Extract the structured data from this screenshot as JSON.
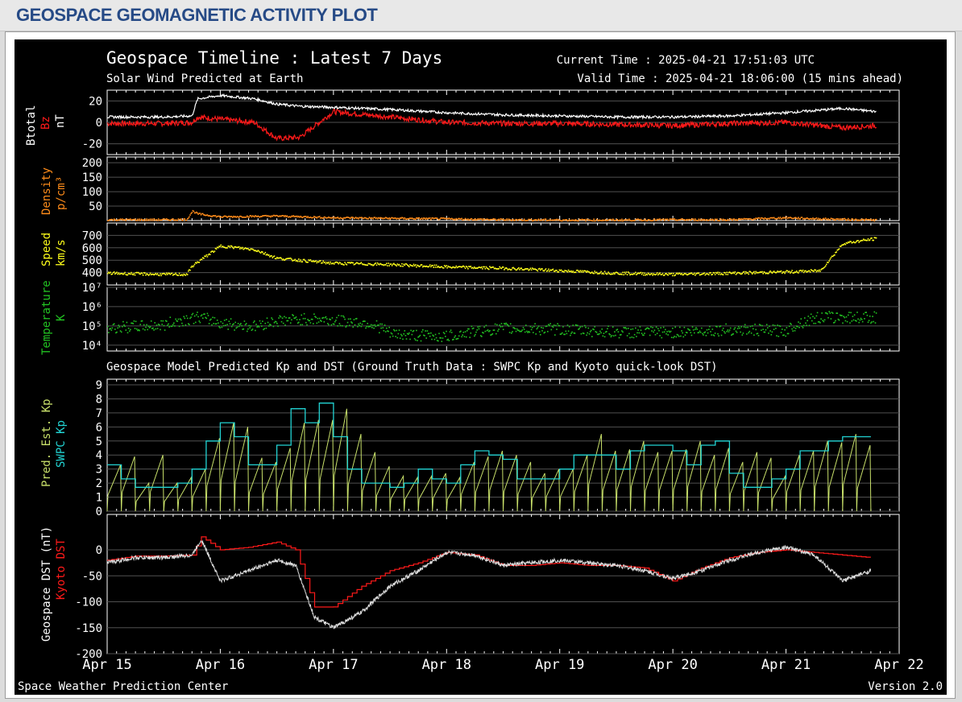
{
  "header": {
    "title": "GEOSPACE GEOMAGNETIC ACTIVITY PLOT"
  },
  "plot": {
    "title": "Geospace Timeline : Latest 7 Days",
    "subtitle": "Solar Wind Predicted at Earth",
    "current_time": "Current Time : 2025-04-21 17:51:03 UTC",
    "valid_time": "Valid Time : 2025-04-21 18:06:00 (15 mins ahead)",
    "model_title": "Geospace Model Predicted Kp and DST (Ground Truth Data : SWPC Kp and Kyoto quick-look DST)",
    "footer_left": "Space Weather Prediction Center",
    "footer_right": "Version 2.0",
    "x_ticks": [
      "Apr 15",
      "Apr 16",
      "Apr 17",
      "Apr 18",
      "Apr 19",
      "Apr 20",
      "Apr 21",
      "Apr 22"
    ]
  },
  "colors": {
    "background": "#000000",
    "grid": "#505050",
    "axis": "#ffffff",
    "btotal": "#ffffff",
    "bz": "#ff1a1a",
    "density": "#ff8c1a",
    "speed": "#ffff1a",
    "temperature": "#22c322",
    "pred_kp": "#c8e06a",
    "swpc_kp": "#22d3d3",
    "geospace_dst": "#dddddd",
    "kyoto_dst": "#ff1a1a"
  },
  "chart_data": [
    {
      "type": "line",
      "name": "magnetic-field",
      "ylabel_parts": [
        "Btotal",
        "Bz",
        "nT"
      ],
      "ylim": [
        -30,
        30
      ],
      "yticks": [
        20,
        0,
        -20
      ],
      "x": [
        "Apr 15",
        "Apr 15.5",
        "Apr 15.75",
        "Apr 15.8",
        "Apr 16",
        "Apr 16.3",
        "Apr 16.5",
        "Apr 16.7",
        "Apr 17",
        "Apr 17.5",
        "Apr 18",
        "Apr 18.5",
        "Apr 19",
        "Apr 19.5",
        "Apr 20",
        "Apr 20.5",
        "Apr 21",
        "Apr 21.5",
        "Apr 21.8"
      ],
      "series": [
        {
          "name": "Btotal",
          "values": [
            5,
            5,
            6,
            22,
            25,
            22,
            17,
            15,
            14,
            12,
            9,
            7,
            6,
            5,
            5,
            6,
            9,
            13,
            10
          ]
        },
        {
          "name": "Bz",
          "values": [
            -1,
            -1,
            0,
            5,
            3,
            0,
            -15,
            -14,
            10,
            5,
            0,
            -1,
            -1,
            -2,
            -3,
            -1,
            0,
            -5,
            -3
          ]
        }
      ]
    },
    {
      "type": "scatter",
      "name": "density",
      "ylabel_parts": [
        "Density",
        "p/cm³"
      ],
      "ylim": [
        0,
        220
      ],
      "yticks": [
        200,
        150,
        100,
        50
      ],
      "x": [
        "Apr 15",
        "Apr 15.5",
        "Apr 15.7",
        "Apr 15.75",
        "Apr 15.8",
        "Apr 16",
        "Apr 16.5",
        "Apr 17",
        "Apr 17.5",
        "Apr 18",
        "Apr 18.5",
        "Apr 19",
        "Apr 19.5",
        "Apr 20",
        "Apr 20.5",
        "Apr 21",
        "Apr 21.3",
        "Apr 21.8"
      ],
      "values": [
        5,
        5,
        6,
        35,
        25,
        15,
        18,
        12,
        10,
        8,
        5,
        4,
        4,
        5,
        5,
        12,
        8,
        4
      ]
    },
    {
      "type": "scatter",
      "name": "speed",
      "ylabel_parts": [
        "Speed",
        "km/s"
      ],
      "ylim": [
        300,
        800
      ],
      "yticks": [
        700,
        600,
        500,
        400
      ],
      "x": [
        "Apr 15",
        "Apr 15.5",
        "Apr 15.7",
        "Apr 15.75",
        "Apr 16",
        "Apr 16.3",
        "Apr 16.5",
        "Apr 17",
        "Apr 17.5",
        "Apr 18",
        "Apr 18.5",
        "Apr 19",
        "Apr 19.5",
        "Apr 20",
        "Apr 20.5",
        "Apr 21",
        "Apr 21.3",
        "Apr 21.5",
        "Apr 21.8"
      ],
      "values": [
        400,
        390,
        390,
        460,
        620,
        590,
        520,
        480,
        470,
        450,
        440,
        420,
        400,
        390,
        400,
        410,
        420,
        640,
        680
      ]
    },
    {
      "type": "scatter",
      "name": "temperature",
      "ylabel_parts": [
        "Temperature",
        "K"
      ],
      "yscale": "log",
      "ylim": [
        5000,
        10000000
      ],
      "yticks_labels": [
        "10⁷",
        "10⁶",
        "10⁵",
        "10⁴"
      ],
      "yticks": [
        10000000,
        1000000,
        100000,
        10000
      ],
      "x": [
        "Apr 15",
        "Apr 15.5",
        "Apr 15.8",
        "Apr 16",
        "Apr 16.3",
        "Apr 16.5",
        "Apr 16.8",
        "Apr 17",
        "Apr 17.3",
        "Apr 17.5",
        "Apr 18",
        "Apr 18.5",
        "Apr 19",
        "Apr 19.5",
        "Apr 20",
        "Apr 20.5",
        "Apr 21",
        "Apr 21.3",
        "Apr 21.8"
      ],
      "values": [
        80000,
        120000,
        300000,
        150000,
        100000,
        200000,
        250000,
        200000,
        150000,
        40000,
        30000,
        80000,
        70000,
        50000,
        50000,
        70000,
        60000,
        300000,
        300000
      ]
    },
    {
      "type": "line",
      "name": "kp",
      "ylabel_parts": [
        "Pred. Est. Kp",
        "SWPC Kp"
      ],
      "ylim": [
        0,
        9
      ],
      "yticks": [
        9,
        8,
        7,
        6,
        5,
        4,
        3,
        2,
        1,
        0
      ],
      "x": [
        "Apr 15 00",
        "Apr 15 03",
        "Apr 15 06",
        "Apr 15 09",
        "Apr 15 12",
        "Apr 15 15",
        "Apr 15 18",
        "Apr 15 21",
        "Apr 16 00",
        "Apr 16 03",
        "Apr 16 06",
        "Apr 16 09",
        "Apr 16 12",
        "Apr 16 15",
        "Apr 16 18",
        "Apr 16 21",
        "Apr 17 00",
        "Apr 17 03",
        "Apr 17 06",
        "Apr 17 09",
        "Apr 17 12",
        "Apr 17 15",
        "Apr 17 18",
        "Apr 17 21",
        "Apr 18 00",
        "Apr 18 03",
        "Apr 18 06",
        "Apr 18 09",
        "Apr 18 12",
        "Apr 18 15",
        "Apr 18 18",
        "Apr 18 21",
        "Apr 19 00",
        "Apr 19 03",
        "Apr 19 06",
        "Apr 19 09",
        "Apr 19 12",
        "Apr 19 15",
        "Apr 19 18",
        "Apr 19 21",
        "Apr 20 00",
        "Apr 20 03",
        "Apr 20 06",
        "Apr 20 09",
        "Apr 20 12",
        "Apr 20 15",
        "Apr 20 18",
        "Apr 20 21",
        "Apr 21 00",
        "Apr 21 03",
        "Apr 21 06",
        "Apr 21 09",
        "Apr 21 12",
        "Apr 21 15"
      ],
      "series": [
        {
          "name": "Pred. Est. Kp",
          "values": [
            3.3,
            3.9,
            2.0,
            4.0,
            2.0,
            2.4,
            3.0,
            5.2,
            6.3,
            6.0,
            3.8,
            3.5,
            4.5,
            6.3,
            6.5,
            6.5,
            7.3,
            5.5,
            4.2,
            3.2,
            2.5,
            2.4,
            2.5,
            2.7,
            2.4,
            3.5,
            3.9,
            4.3,
            4.0,
            3.5,
            2.7,
            3.0,
            3.0,
            4.0,
            5.5,
            4.3,
            4.4,
            5.0,
            4.2,
            4.3,
            4.4,
            5.0,
            4.0,
            4.5,
            3.5,
            4.2,
            3.8,
            2.5,
            4.0,
            4.3,
            5.0,
            4.9,
            5.5,
            4.7
          ]
        },
        {
          "name": "SWPC Kp",
          "values": [
            3.3,
            2.3,
            1.7,
            1.7,
            1.7,
            2.0,
            3.0,
            5.0,
            6.3,
            5.3,
            3.3,
            3.3,
            4.7,
            7.3,
            6.3,
            7.7,
            5.3,
            3.0,
            2.0,
            2.0,
            1.7,
            2.0,
            3.0,
            2.3,
            2.0,
            3.3,
            4.3,
            4.0,
            3.7,
            2.3,
            2.3,
            2.3,
            3.0,
            4.0,
            4.0,
            4.0,
            3.0,
            4.3,
            4.7,
            4.7,
            4.3,
            3.3,
            4.7,
            5.0,
            2.7,
            1.7,
            1.7,
            2.3,
            3.0,
            4.3,
            4.3,
            5.0,
            5.3,
            5.3
          ]
        }
      ]
    },
    {
      "type": "line",
      "name": "dst",
      "ylabel_parts": [
        "Geospace DST (nT)",
        "Kyoto DST"
      ],
      "ylim": [
        -200,
        50
      ],
      "yticks": [
        0,
        -50,
        -100,
        -150,
        -200
      ],
      "x": [
        "Apr 15 00",
        "Apr 15 06",
        "Apr 15 12",
        "Apr 15 18",
        "Apr 15 20",
        "Apr 16 00",
        "Apr 16 06",
        "Apr 16 12",
        "Apr 16 16",
        "Apr 16 20",
        "Apr 17 00",
        "Apr 17 06",
        "Apr 17 12",
        "Apr 17 18",
        "Apr 18 00",
        "Apr 18 06",
        "Apr 18 12",
        "Apr 18 18",
        "Apr 19 00",
        "Apr 19 06",
        "Apr 19 12",
        "Apr 19 18",
        "Apr 20 00",
        "Apr 20 06",
        "Apr 20 12",
        "Apr 20 18",
        "Apr 21 00",
        "Apr 21 06",
        "Apr 21 12",
        "Apr 21 18"
      ],
      "series": [
        {
          "name": "Geospace DST",
          "values": [
            -25,
            -15,
            -15,
            -10,
            20,
            -60,
            -40,
            -20,
            -30,
            -130,
            -150,
            -120,
            -70,
            -40,
            -5,
            -10,
            -30,
            -25,
            -20,
            -25,
            -30,
            -40,
            -55,
            -40,
            -20,
            -5,
            5,
            -10,
            -60,
            -40
          ]
        },
        {
          "name": "Kyoto DST",
          "values": [
            -20,
            -12,
            -12,
            -10,
            25,
            0,
            5,
            15,
            0,
            -110,
            -110,
            -70,
            -40,
            -25,
            -5,
            -10,
            -30,
            -30,
            -25,
            -30,
            -30,
            -35,
            -60,
            -35,
            -15,
            -5,
            0,
            -5,
            -10,
            -15
          ]
        }
      ]
    }
  ]
}
